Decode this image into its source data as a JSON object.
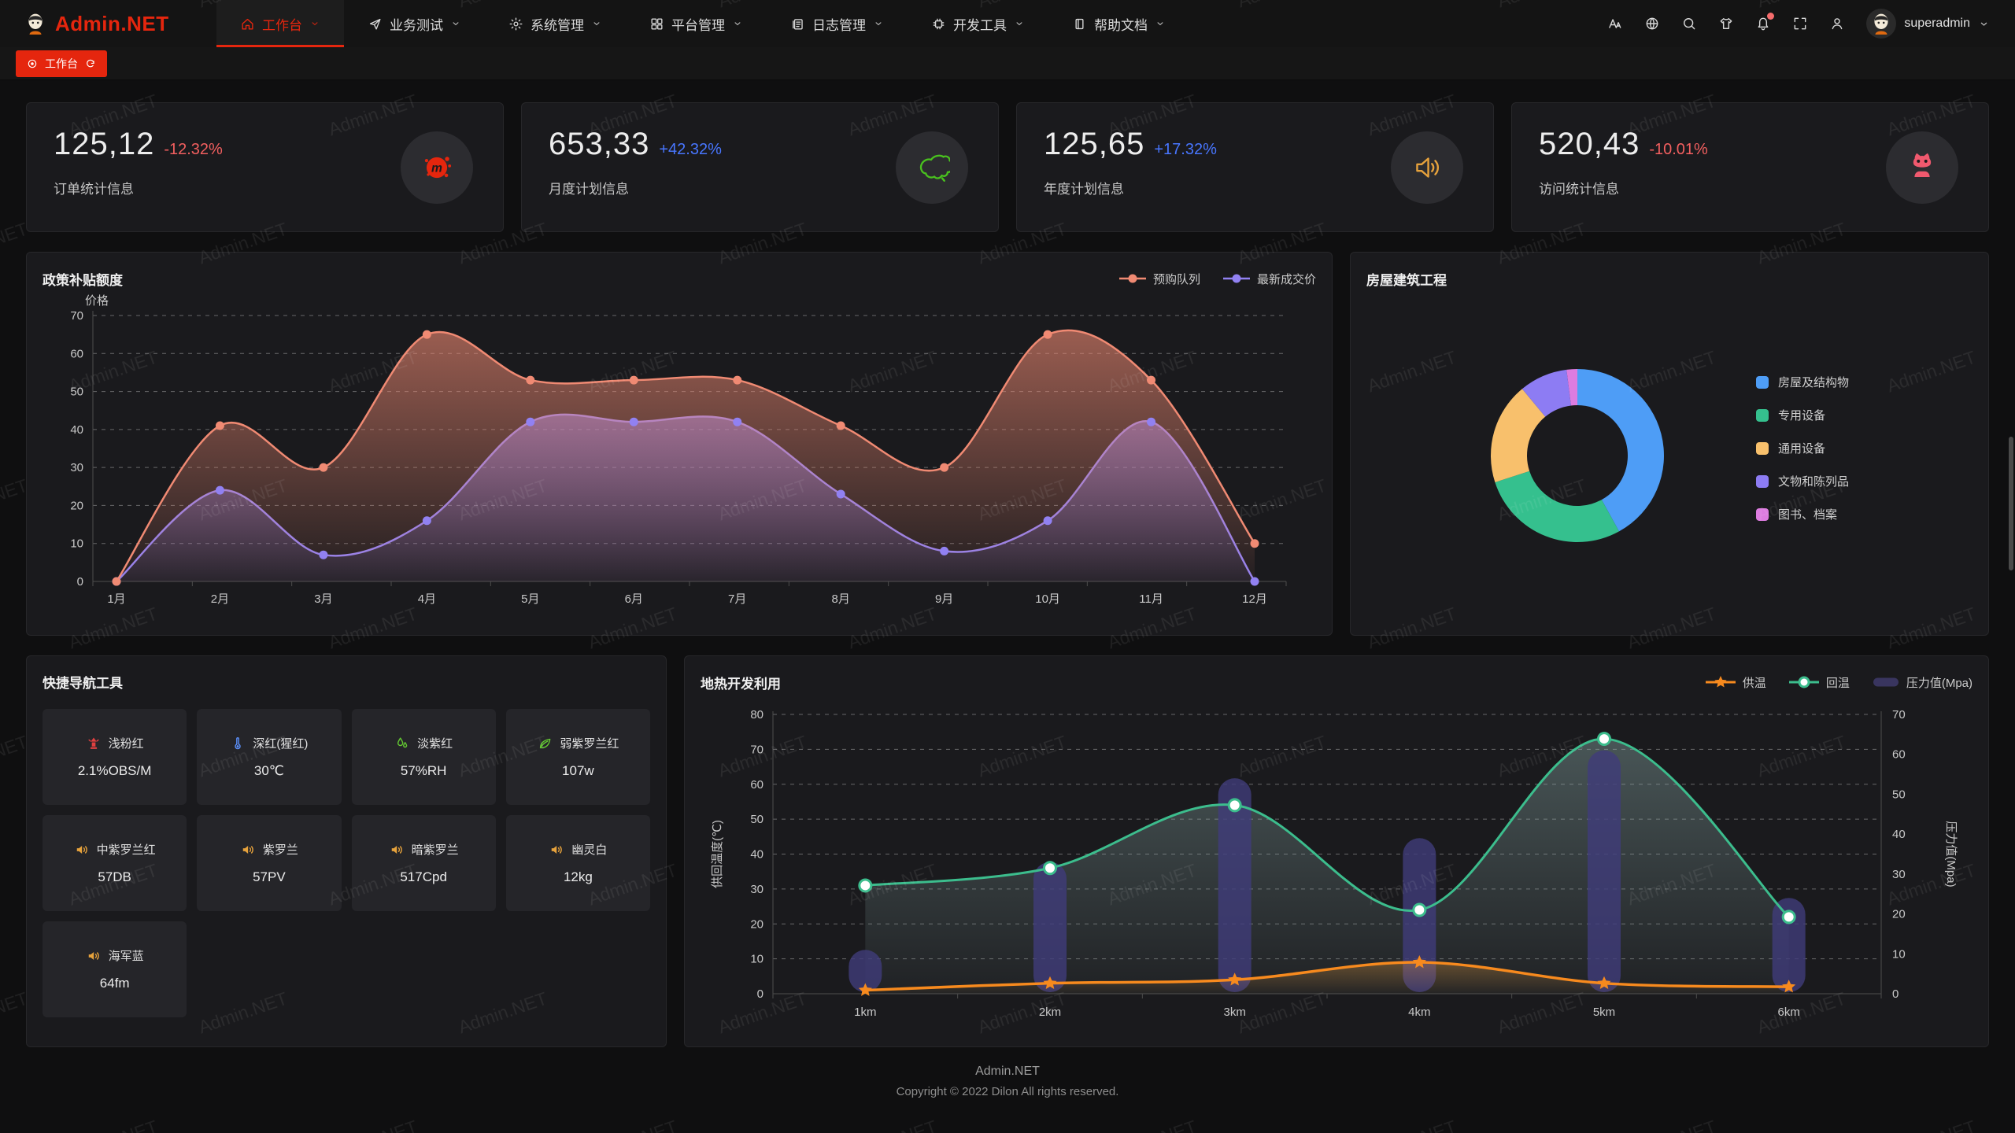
{
  "watermark": "Admin.NET",
  "header": {
    "logo_text": "Admin.NET",
    "menu": [
      {
        "label": "工作台",
        "icon": "home",
        "active": true
      },
      {
        "label": "业务测试",
        "icon": "send",
        "active": false
      },
      {
        "label": "系统管理",
        "icon": "gear",
        "active": false
      },
      {
        "label": "平台管理",
        "icon": "grid",
        "active": false
      },
      {
        "label": "日志管理",
        "icon": "log",
        "active": false
      },
      {
        "label": "开发工具",
        "icon": "cpu",
        "active": false
      },
      {
        "label": "帮助文档",
        "icon": "doc",
        "active": false
      }
    ],
    "toolbar_icons": [
      "font-size",
      "language",
      "search",
      "theme",
      "notification",
      "fullscreen",
      "user-manage"
    ],
    "notification_has_badge": true,
    "username": "superadmin"
  },
  "tabbar": {
    "active_tab": "工作台"
  },
  "stats": [
    {
      "value": "125,12",
      "delta": "-12.32%",
      "delta_color": "#f25f5f",
      "label": "订单统计信息",
      "icon": "medium-splat"
    },
    {
      "value": "653,33",
      "delta": "+42.32%",
      "delta_color": "#4876ff",
      "label": "月度计划信息",
      "icon": "china-map"
    },
    {
      "value": "125,65",
      "delta": "+17.32%",
      "delta_color": "#4876ff",
      "label": "年度计划信息",
      "icon": "speaker"
    },
    {
      "value": "520,43",
      "delta": "-10.01%",
      "delta_color": "#f25f5f",
      "label": "访问统计信息",
      "icon": "cat"
    }
  ],
  "panels": {
    "policy": {
      "title": "政策补贴额度"
    },
    "housing": {
      "title": "房屋建筑工程"
    },
    "shortcuts": {
      "title": "快捷导航工具"
    },
    "geothermal": {
      "title": "地热开发利用"
    }
  },
  "shortcuts": [
    {
      "name": "浅粉红",
      "value": "2.1%OBS/M",
      "icon": "hydrant",
      "icon_color": "#e04040"
    },
    {
      "name": "深红(猩红)",
      "value": "30℃",
      "icon": "thermometer",
      "icon_color": "#5b8ff9"
    },
    {
      "name": "淡紫红",
      "value": "57%RH",
      "icon": "humidity",
      "icon_color": "#63c732"
    },
    {
      "name": "弱紫罗兰红",
      "value": "107w",
      "icon": "leaves",
      "icon_color": "#63c732"
    },
    {
      "name": "中紫罗兰红",
      "value": "57DB",
      "icon": "speaker",
      "icon_color": "#e6a23c"
    },
    {
      "name": "紫罗兰",
      "value": "57PV",
      "icon": "speaker",
      "icon_color": "#e6a23c"
    },
    {
      "name": "暗紫罗兰",
      "value": "517Cpd",
      "icon": "speaker",
      "icon_color": "#e6a23c"
    },
    {
      "name": "幽灵白",
      "value": "12kg",
      "icon": "speaker",
      "icon_color": "#e6a23c"
    },
    {
      "name": "海军蓝",
      "value": "64fm",
      "icon": "speaker",
      "icon_color": "#e6a23c"
    }
  ],
  "chart_data": [
    {
      "type": "line",
      "title": "政策补贴额度",
      "ylabel": "价格",
      "ylim": [
        0,
        70
      ],
      "grid": "dashed",
      "legend_position": "top-right",
      "categories": [
        "1月",
        "2月",
        "3月",
        "4月",
        "5月",
        "6月",
        "7月",
        "8月",
        "9月",
        "10月",
        "11月",
        "12月"
      ],
      "series": [
        {
          "name": "最新成交价",
          "color": "#9181f2",
          "values": [
            0,
            24,
            7,
            16,
            42,
            42,
            42,
            23,
            8,
            16,
            42,
            0
          ]
        },
        {
          "name": "预购队列",
          "color": "#f08a73",
          "values": [
            0,
            41,
            30,
            65,
            53,
            53,
            53,
            41,
            30,
            65,
            53,
            10
          ]
        }
      ]
    },
    {
      "type": "pie",
      "title": "房屋建筑工程",
      "donut": true,
      "legend_position": "right",
      "labels": [
        "房屋及结构物",
        "专用设备",
        "通用设备",
        "文物和陈列品",
        "图书、档案"
      ],
      "values": [
        42,
        28,
        19,
        9,
        2
      ],
      "colors": [
        "#4e9df6",
        "#35c08e",
        "#f8c06c",
        "#8d7cf3",
        "#dd7ce0"
      ]
    },
    {
      "type": "line",
      "title": "地热开发利用",
      "categories": [
        "1km",
        "2km",
        "3km",
        "4km",
        "5km",
        "6km"
      ],
      "ylabel_left": "供回温度(℃)",
      "ylabel_right": "压力值(Mpa)",
      "ylim_left": [
        0,
        80
      ],
      "ylim_right": [
        0,
        70
      ],
      "grid": "dashed",
      "legend_position": "top-right",
      "series": [
        {
          "name": "供温",
          "kind": "line",
          "marker": "star",
          "color": "#f78a1e",
          "axis": "left",
          "values": [
            1,
            3,
            4,
            9,
            3,
            2
          ]
        },
        {
          "name": "回温",
          "kind": "line",
          "marker": "circle",
          "color": "#3cbd8d",
          "axis": "left",
          "values": [
            31,
            36,
            54,
            24,
            73,
            22
          ]
        },
        {
          "name": "压力值(Mpa)",
          "kind": "bar",
          "color": "#403c7a",
          "axis": "right",
          "values": [
            11,
            33,
            54,
            39,
            61,
            24
          ]
        }
      ]
    }
  ],
  "footer": {
    "line1": "Admin.NET",
    "line2": "Copyright © 2022 Dilon All rights reserved."
  }
}
